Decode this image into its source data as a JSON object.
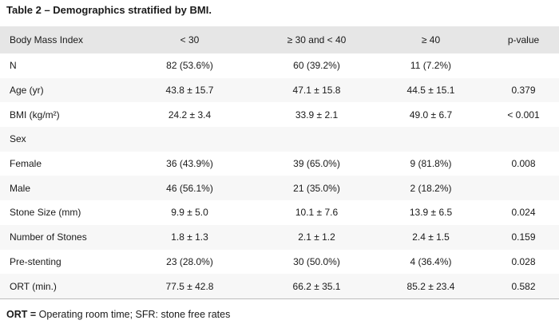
{
  "caption": "Table 2 – Demographics stratified by BMI.",
  "table": {
    "headers": [
      "Body Mass Index",
      "< 30",
      "≥ 30 and < 40",
      "≥ 40",
      "p-value"
    ],
    "rows": [
      [
        "N",
        "82 (53.6%)",
        "60 (39.2%)",
        "11 (7.2%)",
        ""
      ],
      [
        "Age (yr)",
        "43.8 ± 15.7",
        "47.1 ± 15.8",
        "44.5 ± 15.1",
        "0.379"
      ],
      [
        "BMI (kg/m²)",
        "24.2 ± 3.4",
        "33.9 ± 2.1",
        "49.0 ± 6.7",
        "< 0.001"
      ],
      [
        "Sex",
        "",
        "",
        "",
        ""
      ],
      [
        "Female",
        "36 (43.9%)",
        "39 (65.0%)",
        "9 (81.8%)",
        "0.008"
      ],
      [
        "Male",
        "46 (56.1%)",
        "21 (35.0%)",
        "2 (18.2%)",
        ""
      ],
      [
        "Stone Size (mm)",
        "9.9 ± 5.0",
        "10.1 ± 7.6",
        "13.9 ± 6.5",
        "0.024"
      ],
      [
        "Number of Stones",
        "1.8 ± 1.3",
        "2.1 ± 1.2",
        "2.4 ± 1.5",
        "0.159"
      ],
      [
        "Pre-stenting",
        "23 (28.0%)",
        "30 (50.0%)",
        "4 (36.4%)",
        "0.028"
      ],
      [
        "ORT (min.)",
        "77.5 ± 42.8",
        "66.2 ± 35.1",
        "85.2 ± 23.4",
        "0.582"
      ]
    ]
  },
  "footnote": {
    "term": "ORT =",
    "text": " Operating room time; SFR: stone free rates"
  }
}
